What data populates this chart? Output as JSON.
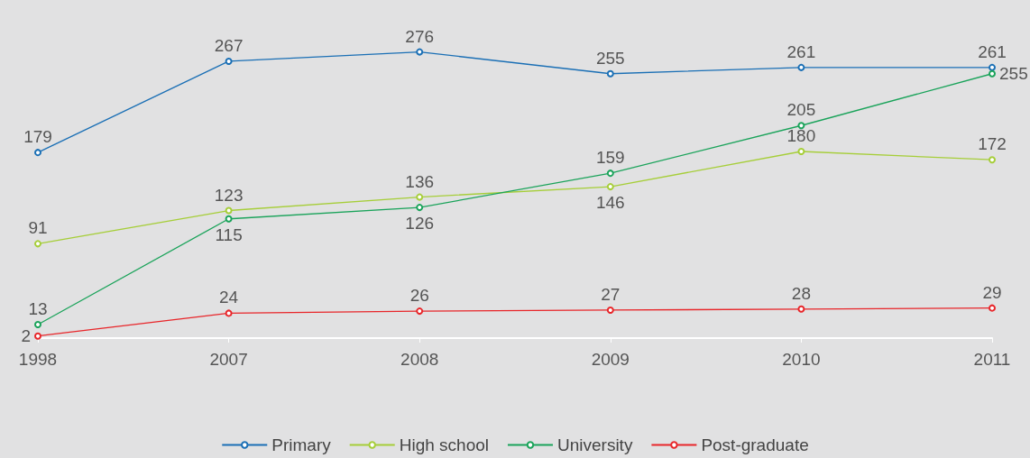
{
  "chart_data": {
    "type": "line",
    "categories": [
      "1998",
      "2007",
      "2008",
      "2009",
      "2010",
      "2011"
    ],
    "series": [
      {
        "name": "Primary",
        "color": "#1a6fb5",
        "values": [
          179,
          267,
          276,
          255,
          261,
          261
        ]
      },
      {
        "name": "High school",
        "color": "#a6ce39",
        "values": [
          91,
          123,
          136,
          146,
          180,
          172
        ]
      },
      {
        "name": "University",
        "color": "#1aa35a",
        "values": [
          13,
          115,
          126,
          159,
          205,
          255
        ]
      },
      {
        "name": "Post-graduate",
        "color": "#e8262a",
        "values": [
          2,
          24,
          26,
          27,
          28,
          29
        ]
      }
    ],
    "data_labels": true,
    "marker": "circle",
    "line_style": "solid",
    "grid": false,
    "legend": "bottom"
  }
}
